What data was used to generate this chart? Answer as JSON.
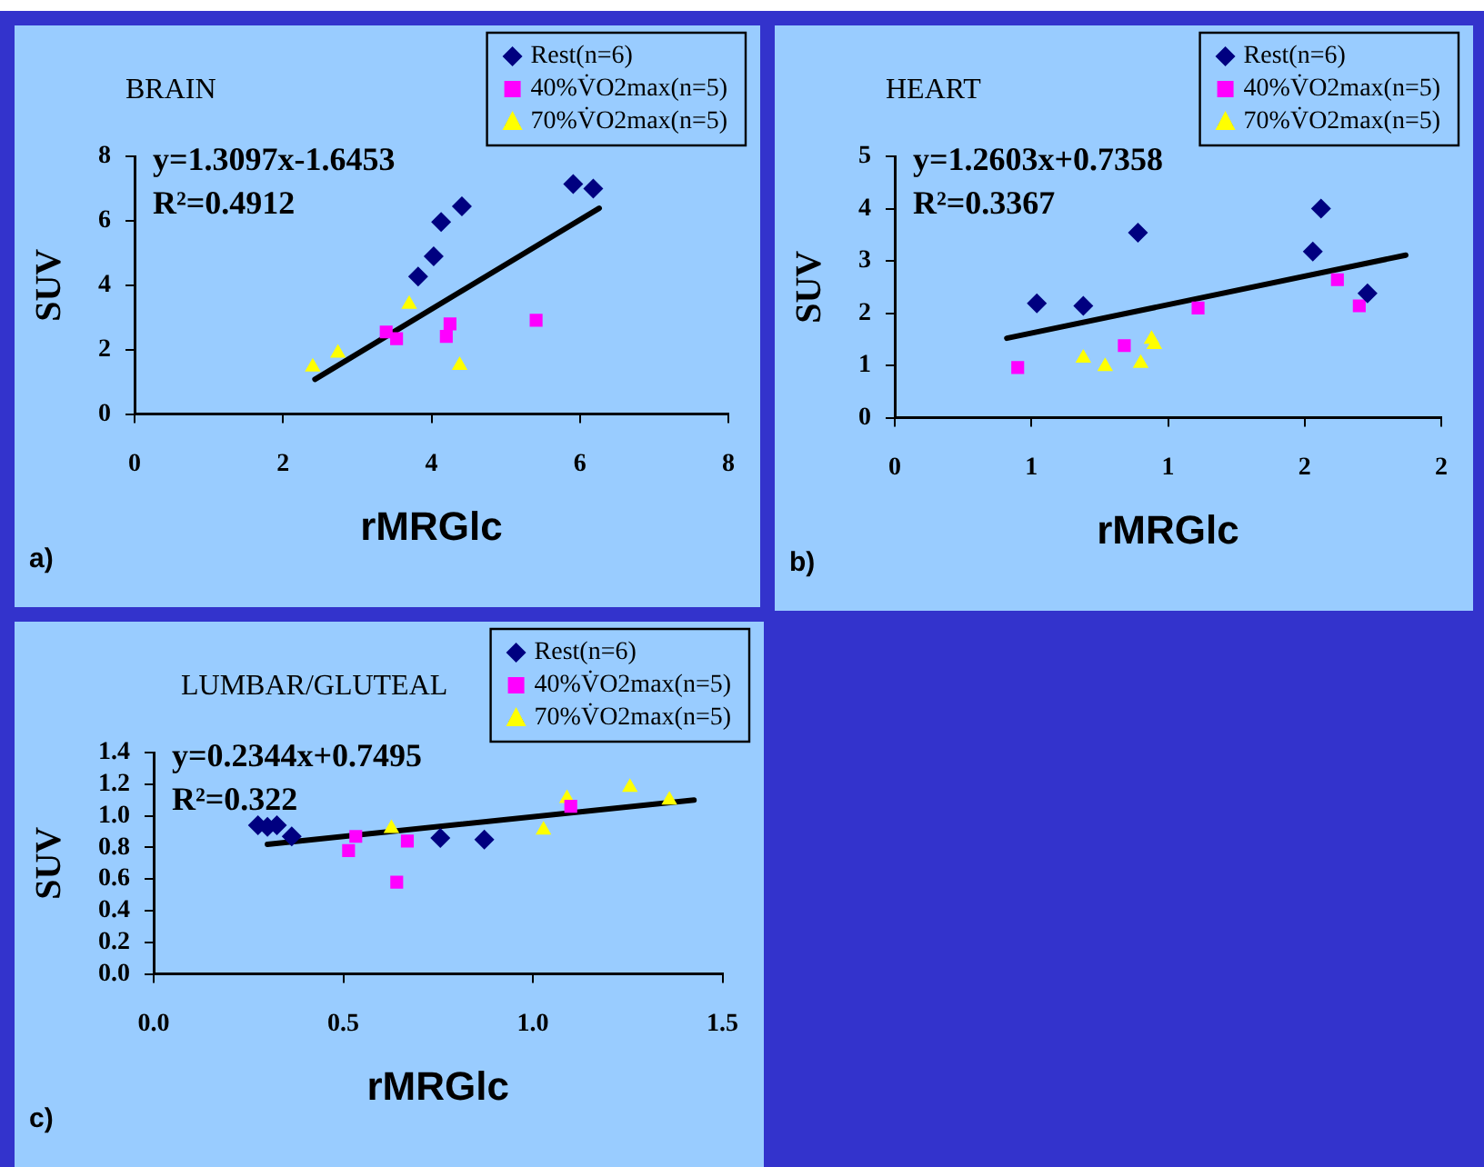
{
  "chart_data": [
    {
      "type": "scatter",
      "title": "BRAIN",
      "xlabel": "rMRGlc",
      "ylabel": "SUV",
      "xlim": [
        0,
        8
      ],
      "ylim": [
        0,
        8
      ],
      "xticks": [
        0,
        2,
        4,
        6,
        8
      ],
      "yticks": [
        0,
        2,
        4,
        6,
        8
      ],
      "grid": false,
      "legend": "top right",
      "annotations": [
        "y=1.3097x-1.6453",
        "R²=0.4912",
        "a)"
      ],
      "series": [
        {
          "name": "Rest(n=6)",
          "color": "#000080",
          "marker": "diamond",
          "x": [
            3.82,
            4.03,
            4.13,
            4.41,
            5.91,
            6.18
          ],
          "values": [
            4.27,
            4.9,
            5.96,
            6.45,
            7.14,
            7.0
          ]
        },
        {
          "name": "40%V̇O2max(n=5)",
          "color": "#ff00ff",
          "marker": "square",
          "x": [
            3.39,
            3.53,
            4.25,
            4.2,
            5.41
          ],
          "values": [
            2.55,
            2.34,
            2.8,
            2.41,
            2.91
          ]
        },
        {
          "name": "70%V̇O2max(n=5)",
          "color": "#ffff00",
          "marker": "triangle",
          "x": [
            2.4,
            2.74,
            3.7,
            4.38
          ],
          "values": [
            1.46,
            1.89,
            3.41,
            1.51
          ]
        },
        {
          "type": "line",
          "color": "#000000",
          "x": [
            2.43,
            6.26
          ],
          "values": [
            1.08,
            6.39
          ]
        }
      ]
    },
    {
      "type": "scatter",
      "title": "HEART",
      "xlabel": "rMRGlc",
      "ylabel": "SUV",
      "xlim": [
        0,
        2
      ],
      "ylim": [
        0,
        5
      ],
      "xticks": [
        0,
        {
          "value": 0.5,
          "label": "1"
        },
        1,
        {
          "value": 1.5,
          "label": "2"
        },
        2
      ],
      "yticks": [
        0,
        1,
        2,
        3,
        4,
        5
      ],
      "grid": false,
      "legend": "top right",
      "annotations": [
        "y=1.2603x+0.7358",
        "R²=0.3367",
        "b)"
      ],
      "series": [
        {
          "name": "Rest(n=6)",
          "color": "#000080",
          "marker": "diamond",
          "x": [
            0.52,
            0.69,
            0.89,
            1.53,
            1.56,
            1.73
          ],
          "values": [
            2.19,
            2.14,
            3.54,
            3.18,
            4.0,
            2.38
          ]
        },
        {
          "name": "40%V̇O2max(n=5)",
          "color": "#ff00ff",
          "marker": "square",
          "x": [
            0.45,
            0.84,
            1.11,
            1.62,
            1.7
          ],
          "values": [
            0.96,
            1.38,
            2.1,
            2.64,
            2.14
          ]
        },
        {
          "name": "70%V̇O2max(n=5)",
          "color": "#ffff00",
          "marker": "triangle",
          "x": [
            0.69,
            0.77,
            0.9,
            0.94,
            0.95
          ],
          "values": [
            1.14,
            0.98,
            1.04,
            1.5,
            1.4
          ]
        },
        {
          "type": "line",
          "color": "#000000",
          "x": [
            0.41,
            1.87
          ],
          "values": [
            1.52,
            3.11
          ]
        }
      ]
    },
    {
      "type": "scatter",
      "title": "LUMBAR/GLUTEAL",
      "xlabel": "rMRGlc",
      "ylabel": "SUV",
      "xlim": [
        0,
        1.5
      ],
      "ylim": [
        0,
        1.4
      ],
      "xticks": [
        {
          "value": 0,
          "label": "0.0"
        },
        {
          "value": 0.5,
          "label": "0.5"
        },
        {
          "value": 1,
          "label": "1.0"
        },
        {
          "value": 1.5,
          "label": "1.5"
        }
      ],
      "yticks": [
        {
          "value": 0,
          "label": "0.0"
        },
        {
          "value": 0.2,
          "label": "0.2"
        },
        {
          "value": 0.4,
          "label": "0.4"
        },
        {
          "value": 0.6,
          "label": "0.6"
        },
        {
          "value": 0.8,
          "label": "0.8"
        },
        {
          "value": 1,
          "label": "1.0"
        },
        {
          "value": 1.2,
          "label": "1.2"
        },
        {
          "value": 1.4,
          "label": "1.4"
        }
      ],
      "grid": false,
      "legend": "top right",
      "annotations": [
        "y=0.2344x+0.7495",
        "R²=0.322",
        "c)"
      ],
      "series": [
        {
          "name": "Rest(n=6)",
          "color": "#000080",
          "marker": "diamond",
          "x": [
            0.275,
            0.3,
            0.325,
            0.364,
            0.756,
            0.872
          ],
          "values": [
            0.94,
            0.93,
            0.94,
            0.87,
            0.86,
            0.85
          ]
        },
        {
          "name": "40%V̇O2max(n=5)",
          "color": "#ff00ff",
          "marker": "square",
          "x": [
            0.514,
            0.533,
            0.641,
            0.669,
            1.1
          ],
          "values": [
            0.78,
            0.87,
            0.58,
            0.84,
            1.06
          ]
        },
        {
          "name": "70%V̇O2max(n=5)",
          "color": "#ffff00",
          "marker": "triangle",
          "x": [
            0.627,
            1.028,
            1.09,
            1.256,
            1.36
          ],
          "values": [
            0.92,
            0.91,
            1.11,
            1.18,
            1.1
          ]
        },
        {
          "type": "line",
          "color": "#000000",
          "x": [
            0.3,
            1.425
          ],
          "values": [
            0.82,
            1.1
          ]
        }
      ]
    }
  ]
}
